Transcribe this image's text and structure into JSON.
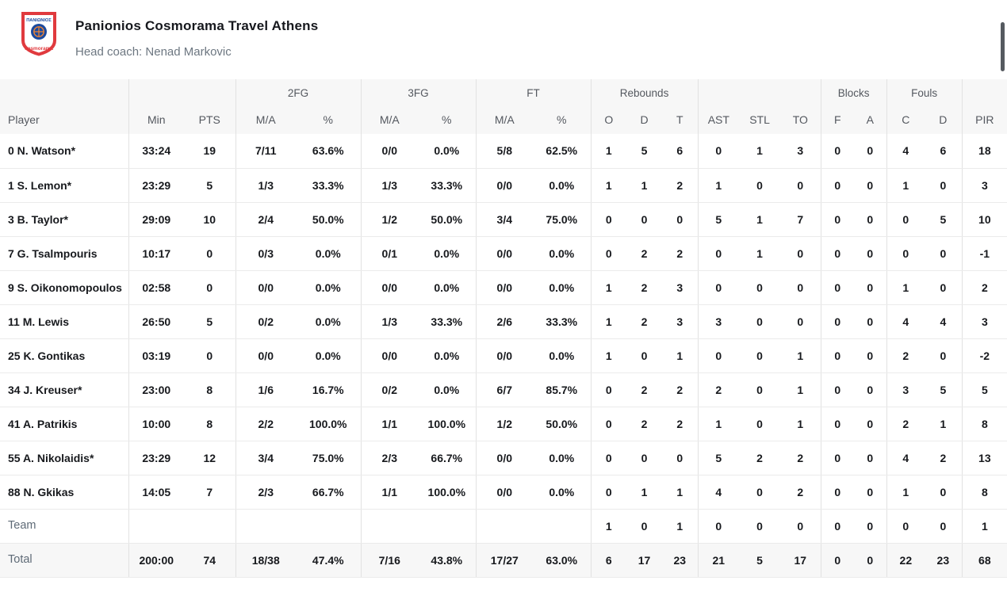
{
  "header": {
    "team_name": "Panionios Cosmorama Travel Athens",
    "coach_line": "Head coach: Nenad Markovic",
    "logo": {
      "top_text": "ΠΑΝΙΩΝΙΟΣ",
      "bottom_text": "cosmorama"
    }
  },
  "colors": {
    "accent_red": "#e03a3e",
    "logo_blue": "#1b4a9e",
    "header_bg": "#f7f7f7"
  },
  "table": {
    "groups": {
      "fg2": "2FG",
      "fg3": "3FG",
      "ft": "FT",
      "rebounds": "Rebounds",
      "blocks": "Blocks",
      "fouls": "Fouls"
    },
    "cols": {
      "player": "Player",
      "min": "Min",
      "pts": "PTS",
      "ma": "M/A",
      "pct": "%",
      "o": "O",
      "d": "D",
      "t": "T",
      "ast": "AST",
      "stl": "STL",
      "to": "TO",
      "f": "F",
      "a": "A",
      "c": "C",
      "pir": "PIR"
    },
    "rows": [
      [
        "0 N. Watson*",
        "33:24",
        "19",
        "7/11",
        "63.6%",
        "0/0",
        "0.0%",
        "5/8",
        "62.5%",
        "1",
        "5",
        "6",
        "0",
        "1",
        "3",
        "0",
        "0",
        "4",
        "6",
        "18"
      ],
      [
        "1 S. Lemon*",
        "23:29",
        "5",
        "1/3",
        "33.3%",
        "1/3",
        "33.3%",
        "0/0",
        "0.0%",
        "1",
        "1",
        "2",
        "1",
        "0",
        "0",
        "0",
        "0",
        "1",
        "0",
        "3"
      ],
      [
        "3 B. Taylor*",
        "29:09",
        "10",
        "2/4",
        "50.0%",
        "1/2",
        "50.0%",
        "3/4",
        "75.0%",
        "0",
        "0",
        "0",
        "5",
        "1",
        "7",
        "0",
        "0",
        "0",
        "5",
        "10"
      ],
      [
        "7 G. Tsalmpouris",
        "10:17",
        "0",
        "0/3",
        "0.0%",
        "0/1",
        "0.0%",
        "0/0",
        "0.0%",
        "0",
        "2",
        "2",
        "0",
        "1",
        "0",
        "0",
        "0",
        "0",
        "0",
        "-1"
      ],
      [
        "9 S. Oikonomopoulos",
        "02:58",
        "0",
        "0/0",
        "0.0%",
        "0/0",
        "0.0%",
        "0/0",
        "0.0%",
        "1",
        "2",
        "3",
        "0",
        "0",
        "0",
        "0",
        "0",
        "1",
        "0",
        "2"
      ],
      [
        "11 M. Lewis",
        "26:50",
        "5",
        "0/2",
        "0.0%",
        "1/3",
        "33.3%",
        "2/6",
        "33.3%",
        "1",
        "2",
        "3",
        "3",
        "0",
        "0",
        "0",
        "0",
        "4",
        "4",
        "3"
      ],
      [
        "25 K. Gontikas",
        "03:19",
        "0",
        "0/0",
        "0.0%",
        "0/0",
        "0.0%",
        "0/0",
        "0.0%",
        "1",
        "0",
        "1",
        "0",
        "0",
        "1",
        "0",
        "0",
        "2",
        "0",
        "-2"
      ],
      [
        "34 J. Kreuser*",
        "23:00",
        "8",
        "1/6",
        "16.7%",
        "0/2",
        "0.0%",
        "6/7",
        "85.7%",
        "0",
        "2",
        "2",
        "2",
        "0",
        "1",
        "0",
        "0",
        "3",
        "5",
        "5"
      ],
      [
        "41 A. Patrikis",
        "10:00",
        "8",
        "2/2",
        "100.0%",
        "1/1",
        "100.0%",
        "1/2",
        "50.0%",
        "0",
        "2",
        "2",
        "1",
        "0",
        "1",
        "0",
        "0",
        "2",
        "1",
        "8"
      ],
      [
        "55 A. Nikolaidis*",
        "23:29",
        "12",
        "3/4",
        "75.0%",
        "2/3",
        "66.7%",
        "0/0",
        "0.0%",
        "0",
        "0",
        "0",
        "5",
        "2",
        "2",
        "0",
        "0",
        "4",
        "2",
        "13"
      ],
      [
        "88 N. Gkikas",
        "14:05",
        "7",
        "2/3",
        "66.7%",
        "1/1",
        "100.0%",
        "0/0",
        "0.0%",
        "0",
        "1",
        "1",
        "4",
        "0",
        "2",
        "0",
        "0",
        "1",
        "0",
        "8"
      ],
      [
        "Team",
        "",
        "",
        "",
        "",
        "",
        "",
        "",
        "",
        "1",
        "0",
        "1",
        "0",
        "0",
        "0",
        "0",
        "0",
        "0",
        "0",
        "1"
      ],
      [
        "Total",
        "200:00",
        "74",
        "18/38",
        "47.4%",
        "7/16",
        "43.8%",
        "17/27",
        "63.0%",
        "6",
        "17",
        "23",
        "21",
        "5",
        "17",
        "0",
        "0",
        "22",
        "23",
        "68"
      ]
    ]
  }
}
